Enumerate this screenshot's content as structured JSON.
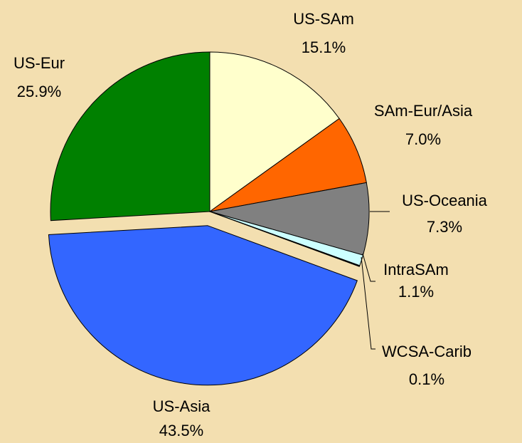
{
  "chart_data": {
    "type": "pie",
    "categories": [
      "US-SAm",
      "SAm-Eur/Asia",
      "US-Oceania",
      "IntraSAm",
      "WCSA-Carib",
      "US-Asia",
      "US-Eur"
    ],
    "values": [
      15.1,
      7.0,
      7.3,
      1.1,
      0.1,
      43.5,
      25.9
    ],
    "value_labels": [
      "15.1%",
      "7.0%",
      "7.3%",
      "1.1%",
      "0.1%",
      "43.5%",
      "25.9%"
    ],
    "colors": [
      "#ffffcc",
      "#ff6600",
      "#808080",
      "#ccffff",
      "#000000",
      "#3366ff",
      "#008000"
    ],
    "explode": [
      false,
      false,
      false,
      false,
      false,
      true,
      false
    ]
  }
}
